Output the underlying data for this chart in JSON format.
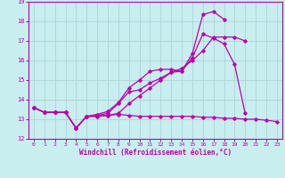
{
  "background_color": "#c8eef0",
  "grid_color": "#b0d8da",
  "line_color": "#bb00aa",
  "xlabel": "Windchill (Refroidissement éolien,°C)",
  "xlim": [
    -0.5,
    23.5
  ],
  "ylim": [
    12,
    19
  ],
  "yticks": [
    12,
    13,
    14,
    15,
    16,
    17,
    18,
    19
  ],
  "xticks": [
    0,
    1,
    2,
    3,
    4,
    5,
    6,
    7,
    8,
    9,
    10,
    11,
    12,
    13,
    14,
    15,
    16,
    17,
    18,
    19,
    20,
    21,
    22,
    23
  ],
  "series": [
    {
      "x": [
        0,
        1,
        2,
        3,
        4,
        5,
        6,
        7,
        8,
        9,
        10,
        11,
        12,
        13,
        14,
        15,
        16,
        17,
        18,
        19,
        20,
        21,
        22,
        23
      ],
      "y": [
        13.6,
        13.35,
        13.35,
        13.35,
        12.55,
        13.15,
        13.15,
        13.2,
        13.25,
        13.2,
        13.15,
        13.15,
        13.15,
        13.15,
        13.15,
        13.15,
        13.1,
        13.1,
        13.05,
        13.05,
        13.0,
        13.0,
        12.95,
        12.88
      ]
    },
    {
      "x": [
        0,
        1,
        2,
        3,
        4,
        5,
        6,
        7,
        8,
        9,
        10,
        11,
        12,
        13,
        14,
        15,
        16,
        17,
        18,
        19,
        20,
        21,
        22,
        23
      ],
      "y": [
        13.6,
        13.35,
        13.35,
        13.35,
        12.55,
        13.15,
        13.2,
        13.3,
        13.8,
        14.4,
        14.5,
        14.85,
        15.1,
        15.4,
        15.45,
        16.15,
        17.35,
        17.15,
        16.85,
        15.8,
        13.3,
        null,
        null,
        null
      ]
    },
    {
      "x": [
        0,
        1,
        2,
        3,
        4,
        5,
        6,
        7,
        8,
        9,
        10,
        11,
        12,
        13,
        14,
        15,
        16,
        17,
        18,
        19,
        20,
        21,
        22,
        23
      ],
      "y": [
        13.6,
        13.35,
        13.35,
        13.35,
        12.55,
        13.15,
        13.25,
        13.4,
        13.85,
        14.6,
        15.0,
        15.45,
        15.55,
        15.55,
        15.45,
        16.35,
        18.35,
        18.5,
        18.1,
        null,
        null,
        null,
        null,
        null
      ]
    },
    {
      "x": [
        0,
        1,
        2,
        3,
        4,
        5,
        6,
        7,
        8,
        9,
        10,
        11,
        12,
        13,
        14,
        15,
        16,
        17,
        18,
        19,
        20,
        21,
        22,
        23
      ],
      "y": [
        13.6,
        13.35,
        13.35,
        13.35,
        12.55,
        13.15,
        13.15,
        13.2,
        13.3,
        13.8,
        14.2,
        14.6,
        15.0,
        15.4,
        15.6,
        16.0,
        16.5,
        17.2,
        17.2,
        17.2,
        17.0,
        null,
        null,
        null
      ]
    }
  ]
}
